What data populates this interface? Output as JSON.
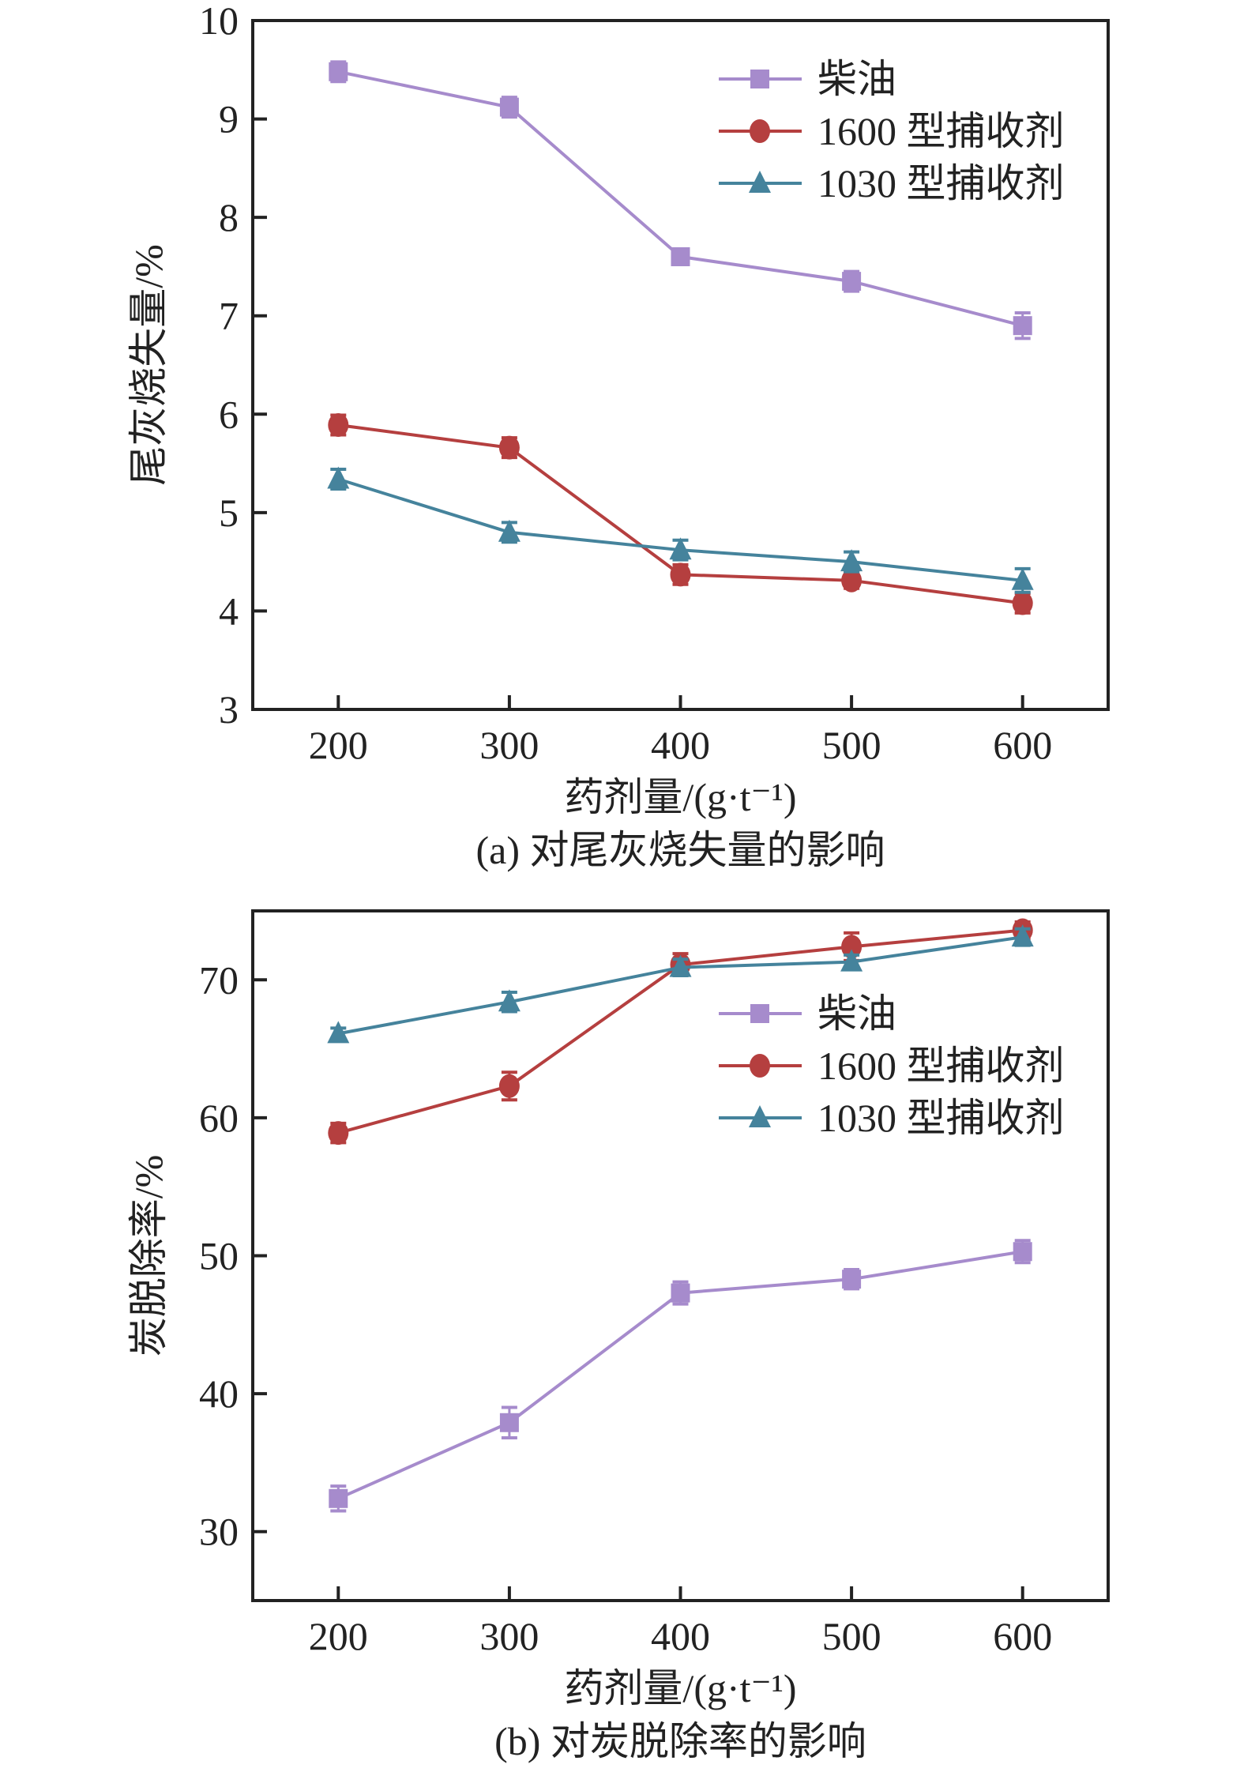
{
  "chart_data": [
    {
      "type": "line",
      "title": "",
      "caption": "(a) 对尾灰烧失量的影响",
      "xlabel": "药剂量/(g·t⁻¹)",
      "ylabel": "尾灰烧失量/%",
      "x": [
        200,
        300,
        400,
        500,
        600
      ],
      "xticks": [
        "200",
        "300",
        "400",
        "500",
        "600"
      ],
      "ylim": [
        3,
        10
      ],
      "yticks": [
        "3",
        "4",
        "5",
        "6",
        "7",
        "8",
        "9",
        "10"
      ],
      "xlim": [
        150,
        650
      ],
      "legend": "top-right",
      "series": [
        {
          "name": "柴油",
          "marker": "square",
          "color": "#a68bcc",
          "values": [
            9.48,
            9.12,
            7.6,
            7.35,
            6.9
          ],
          "err": [
            0.1,
            0.1,
            0.08,
            0.1,
            0.13
          ]
        },
        {
          "name": "1600 型捕收剂",
          "marker": "circle",
          "color": "#b53f3f",
          "values": [
            5.89,
            5.66,
            4.37,
            4.31,
            4.08
          ],
          "err": [
            0.1,
            0.1,
            0.1,
            0.08,
            0.1
          ]
        },
        {
          "name": "1030 型捕收剂",
          "marker": "triangle",
          "color": "#45839c",
          "values": [
            5.34,
            4.8,
            4.62,
            4.5,
            4.31
          ],
          "err": [
            0.1,
            0.1,
            0.1,
            0.1,
            0.12
          ]
        }
      ]
    },
    {
      "type": "line",
      "title": "",
      "caption": "(b) 对炭脱除率的影响",
      "xlabel": "药剂量/(g·t⁻¹)",
      "ylabel": "炭脱除率/%",
      "x": [
        200,
        300,
        400,
        500,
        600
      ],
      "xticks": [
        "200",
        "300",
        "400",
        "500",
        "600"
      ],
      "ylim": [
        25,
        75
      ],
      "yticks": [
        "30",
        "40",
        "50",
        "60",
        "70"
      ],
      "xlim": [
        150,
        650
      ],
      "legend": "center-right",
      "series": [
        {
          "name": "柴油",
          "marker": "square",
          "color": "#a68bcc",
          "values": [
            32.4,
            37.9,
            47.3,
            48.3,
            50.3
          ],
          "err": [
            0.9,
            1.1,
            0.8,
            0.7,
            0.8
          ]
        },
        {
          "name": "1600 型捕收剂",
          "marker": "circle",
          "color": "#b53f3f",
          "values": [
            58.9,
            62.3,
            71.1,
            72.4,
            73.6
          ],
          "err": [
            0.7,
            1.0,
            0.8,
            1.0,
            0.6
          ]
        },
        {
          "name": "1030 型捕收剂",
          "marker": "triangle",
          "color": "#45839c",
          "values": [
            66.1,
            68.4,
            70.9,
            71.3,
            73.1
          ],
          "err": [
            0.4,
            0.7,
            0.6,
            0.5,
            0.6
          ]
        }
      ]
    }
  ]
}
